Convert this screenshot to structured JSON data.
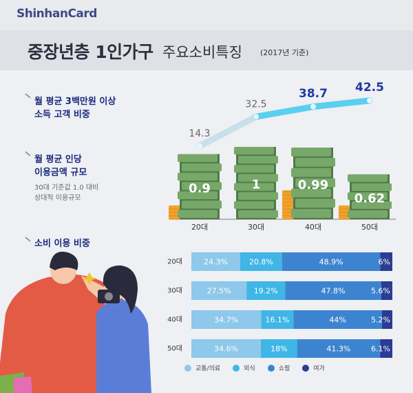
{
  "header": {
    "brand": "ShinhanCard",
    "title_main": "중장년층 1인가구",
    "title_sub": "주요소비특징",
    "title_year": "(2017년 기준)"
  },
  "labels": {
    "share_line1": "월 평균 3백만원 이상",
    "share_line2": "소득 고객 비중",
    "amount_line1": "월 평균 인당",
    "amount_line2": "이용금액 규모",
    "note_line1": "30대 기준값 1.0 대비",
    "note_line2": "상대적 이용규모",
    "consumption": "소비 이용 비중"
  },
  "colors": {
    "transport_medical": "#8ec8ea",
    "dining": "#3fb6e6",
    "shopping": "#3d84d0",
    "leisure": "#2a3c93",
    "line_faded": "#c9dfe9",
    "line_bright": "#3fc9ef",
    "money_dark": "#4f7b4a",
    "money_light": "#77a86a",
    "coin": "#f1a22b"
  },
  "chart_data": [
    {
      "type": "line",
      "categories": [
        "20대",
        "30대",
        "40대",
        "50대"
      ],
      "values": [
        14.3,
        32.5,
        38.7,
        42.5
      ],
      "labels": [
        "14.3",
        "32.5",
        "38.7",
        "42.5"
      ],
      "ylim": [
        0,
        45
      ]
    },
    {
      "type": "bar",
      "categories": [
        "20대",
        "30대",
        "40대",
        "50대"
      ],
      "values": [
        0.9,
        1,
        0.99,
        0.62
      ],
      "labels": [
        "0.9",
        "1",
        "0.99",
        "0.62"
      ]
    },
    {
      "type": "bar",
      "stacked": true,
      "orientation": "horizontal",
      "categories": [
        "20대",
        "30대",
        "40대",
        "50대"
      ],
      "series": [
        {
          "name": "교통/의료",
          "values": [
            24.3,
            27.5,
            34.7,
            34.6
          ],
          "labels": [
            "24.3%",
            "27.5%",
            "34.7%",
            "34.6%"
          ]
        },
        {
          "name": "외식",
          "values": [
            20.8,
            19.2,
            16.1,
            18
          ],
          "labels": [
            "20.8%",
            "19.2%",
            "16.1%",
            "18%"
          ]
        },
        {
          "name": "쇼핑",
          "values": [
            48.9,
            47.8,
            44,
            41.3
          ],
          "labels": [
            "48.9%",
            "47.8%",
            "44%",
            "41.3%"
          ]
        },
        {
          "name": "여가",
          "values": [
            6,
            5.6,
            5.2,
            6.1
          ],
          "labels": [
            "6%",
            "5.6%",
            "5.2%",
            "6.1%"
          ]
        }
      ],
      "legend": "bottom"
    }
  ]
}
